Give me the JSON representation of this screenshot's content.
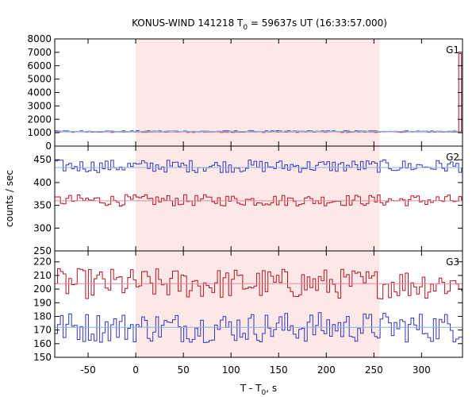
{
  "chart_data": {
    "type": "line",
    "title": "KONUS-WIND 141218 T",
    "title_sub": "0",
    "title_rest": " = 59637s UT (16:33:57.000)",
    "xlabel": "T - T",
    "xlabel_sub": "0",
    "xlabel_rest": ", s",
    "ylabel": "counts / sec",
    "xlim": [
      -85,
      343
    ],
    "x_ticks": [
      -50,
      0,
      50,
      100,
      150,
      200,
      250,
      300
    ],
    "shaded_interval": [
      0,
      256
    ],
    "shade_color": "#fde8e8",
    "bin_width": 2.944,
    "series_colors": {
      "blue": "#3333bb",
      "red": "#b31222",
      "blue_fit": "#7fb3e6",
      "red_fit": "#e08a99"
    },
    "panels": [
      {
        "name": "G1",
        "ylim": [
          0,
          8000
        ],
        "y_ticks": [
          0,
          1000,
          2000,
          3000,
          4000,
          5000,
          6000,
          7000,
          8000
        ],
        "blue_mean": 1100,
        "blue_amp": 35,
        "red_mean": 1060,
        "red_amp": 30,
        "fit_blue": 1100,
        "fit_red": 1060,
        "spike": {
          "x": 339,
          "value": 6900
        }
      },
      {
        "name": "G2",
        "ylim": [
          250,
          480
        ],
        "y_ticks": [
          250,
          300,
          350,
          400,
          450
        ],
        "blue_mean": 436,
        "blue_amp": 10,
        "red_mean": 361,
        "red_amp": 9,
        "fit_blue": 433,
        "fit_red": 360
      },
      {
        "name": "G3",
        "ylim": [
          150,
          228
        ],
        "y_ticks": [
          150,
          160,
          170,
          180,
          190,
          200,
          210,
          220
        ],
        "blue_mean": 172,
        "blue_amp": 8,
        "red_mean": 204,
        "red_amp": 8,
        "fit_blue": 172,
        "fit_red": 204
      }
    ]
  }
}
